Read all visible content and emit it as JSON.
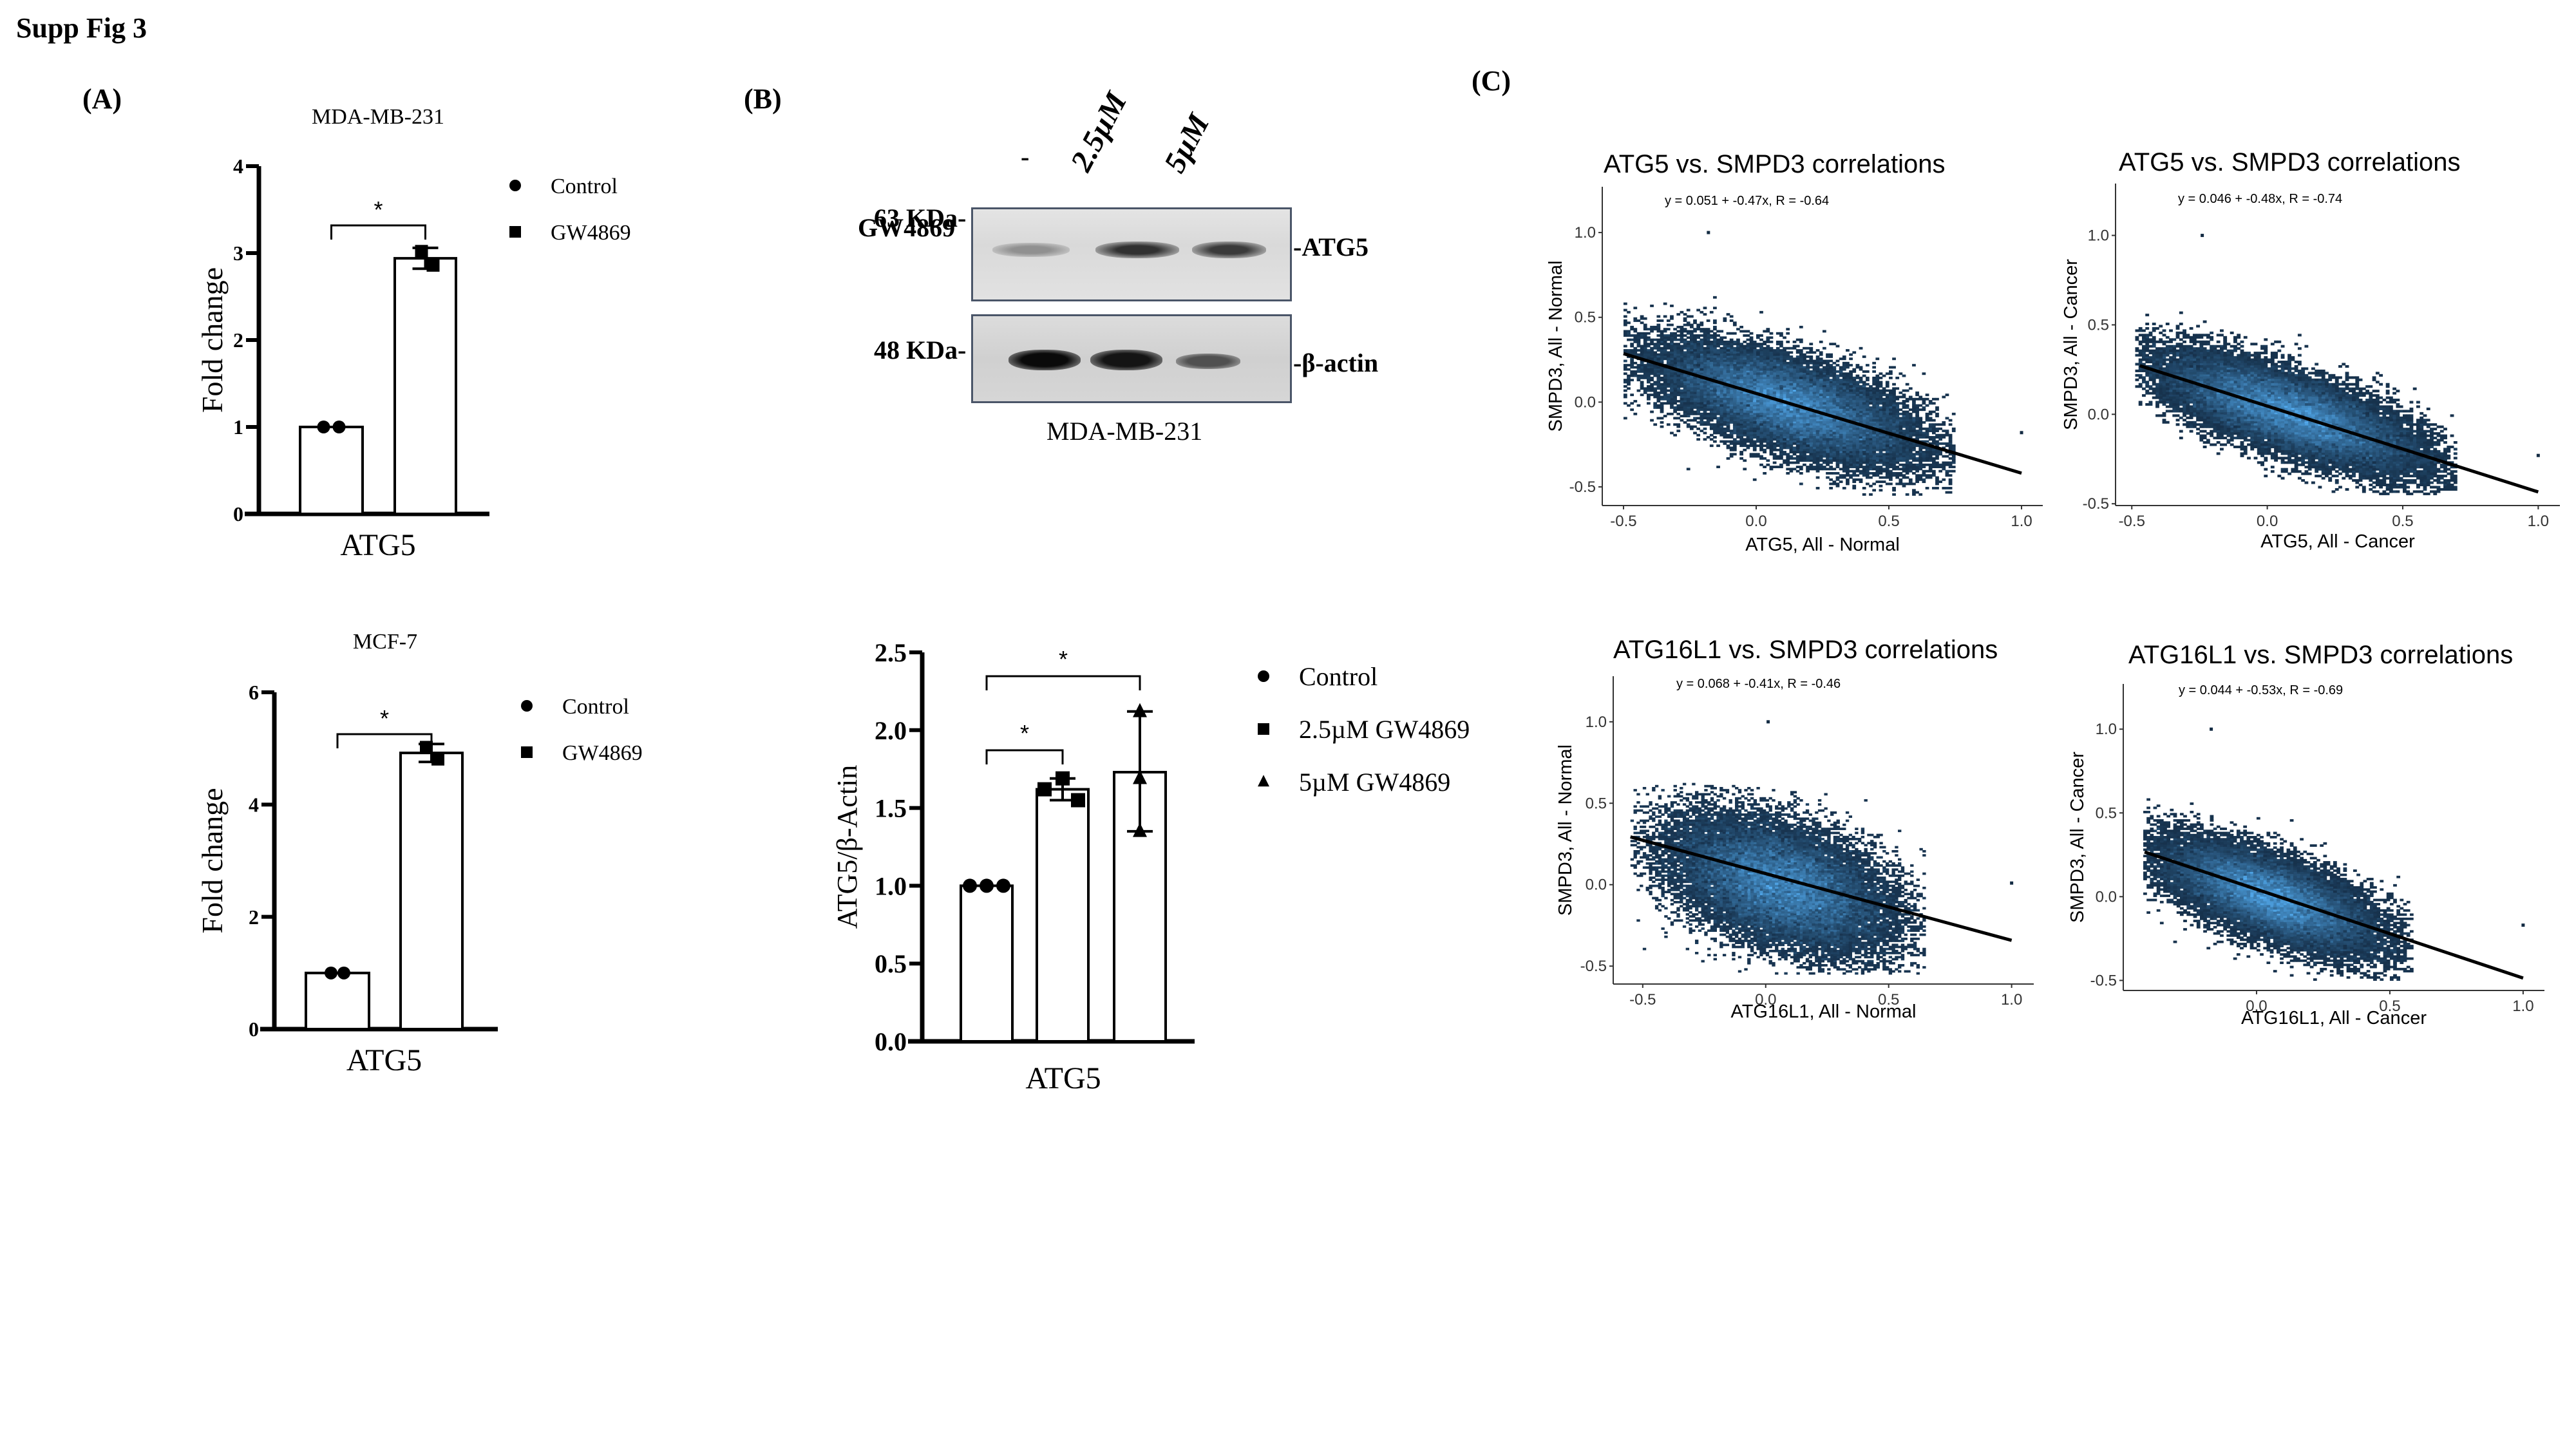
{
  "figure_title": "Supp Fig 3",
  "panel_labels": {
    "a": "(A)",
    "b": "(B)",
    "c": "(C)"
  },
  "western_blot": {
    "treatment_label": "GW4869",
    "lanes": [
      "-",
      "2.5µM",
      "5µM"
    ],
    "markers": [
      {
        "label": "63 KDa-",
        "target": "-ATG5"
      },
      {
        "label": "48 KDa-",
        "target": "-β-actin"
      }
    ],
    "cell_line": "MDA-MB-231",
    "atg5_band_intensity": [
      0.35,
      0.85,
      0.8
    ],
    "actin_band_intensity": [
      0.95,
      0.9,
      0.6
    ]
  },
  "chart_data": [
    {
      "id": "a1",
      "type": "bar",
      "title": "MDA-MB-231",
      "xlabel": "ATG5",
      "ylabel": "Fold change",
      "ylim": [
        0,
        4
      ],
      "yticks": [
        "0",
        "1",
        "2",
        "3",
        "4"
      ],
      "ytick_values": [
        0,
        1,
        2,
        3,
        4
      ],
      "categories": [
        "Control",
        "GW4869"
      ],
      "series": [
        {
          "name": "Control",
          "marker": "circle",
          "value": 1.0,
          "points": [
            1.0,
            1.0
          ],
          "error": [
            1.0,
            1.0
          ]
        },
        {
          "name": "GW4869",
          "marker": "square",
          "value": 2.94,
          "points": [
            3.02,
            2.86
          ],
          "error": [
            2.82,
            3.06
          ]
        }
      ],
      "significance": [
        {
          "from": 0,
          "to": 1,
          "label": "*"
        }
      ],
      "legend": [
        "Control",
        "GW4869"
      ],
      "legend_position": "right"
    },
    {
      "id": "a2",
      "type": "bar",
      "title": "MCF-7",
      "xlabel": "ATG5",
      "ylabel": "Fold change",
      "ylim": [
        0,
        6
      ],
      "yticks": [
        "0",
        "2",
        "4",
        "6"
      ],
      "ytick_values": [
        0,
        2,
        4,
        6
      ],
      "categories": [
        "Control",
        "GW4869"
      ],
      "series": [
        {
          "name": "Control",
          "marker": "circle",
          "value": 1.0,
          "points": [
            1.0,
            1.0
          ],
          "error": [
            1.0,
            1.0
          ]
        },
        {
          "name": "GW4869",
          "marker": "square",
          "value": 4.92,
          "points": [
            5.02,
            4.81
          ],
          "error": [
            4.76,
            5.08
          ]
        }
      ],
      "significance": [
        {
          "from": 0,
          "to": 1,
          "label": "*"
        }
      ],
      "legend": [
        "Control",
        "GW4869"
      ],
      "legend_position": "right"
    },
    {
      "id": "b",
      "type": "bar",
      "title": "",
      "xlabel": "ATG5",
      "ylabel": "ATG5/β-Actin",
      "ylim": [
        0,
        2.5
      ],
      "yticks": [
        "0.0",
        "0.5",
        "1.0",
        "1.5",
        "2.0",
        "2.5"
      ],
      "ytick_values": [
        0,
        0.5,
        1.0,
        1.5,
        2.0,
        2.5
      ],
      "categories": [
        "Control",
        "2.5µM GW4869",
        "5µM GW4869"
      ],
      "series": [
        {
          "name": "Control",
          "marker": "circle",
          "value": 1.0,
          "points": [
            1.0,
            1.0,
            1.0
          ],
          "error": [
            1.0,
            1.0
          ]
        },
        {
          "name": "2.5µM GW4869",
          "marker": "square",
          "value": 1.62,
          "points": [
            1.62,
            1.69,
            1.55
          ],
          "error": [
            1.55,
            1.69
          ]
        },
        {
          "name": "5µM GW4869",
          "marker": "triangle",
          "value": 1.73,
          "points": [
            2.12,
            1.69,
            1.35
          ],
          "error": [
            1.35,
            2.12
          ]
        }
      ],
      "significance": [
        {
          "from": 0,
          "to": 1,
          "label": "*"
        },
        {
          "from": 0,
          "to": 2,
          "label": "*"
        }
      ],
      "legend": [
        "Control",
        "2.5µM GW4869",
        "5µM GW4869"
      ],
      "legend_position": "right"
    },
    {
      "id": "c1",
      "type": "heatmap",
      "subtype": "2d-density-scatter",
      "title": "ATG5 vs. SMPD3 correlations",
      "equation": "y = 0.051 + -0.47x,   R = -0.64",
      "intercept": 0.051,
      "slope": -0.47,
      "r": -0.64,
      "xlabel": "ATG5, All - Normal",
      "ylabel": "SMPD3, All - Normal",
      "xlim": [
        -0.58,
        1.08
      ],
      "ylim": [
        -0.61,
        1.27
      ],
      "xticks": [
        -0.5,
        0.0,
        0.5,
        1.0
      ],
      "xtick_labels": [
        "-0.5",
        "0.0",
        "0.5",
        "1.0"
      ],
      "yticks": [
        -0.5,
        0.0,
        0.5,
        1.0
      ],
      "ytick_labels": [
        "-0.5",
        "0.0",
        "0.5",
        "1.0"
      ],
      "line_x": [
        -0.5,
        1.0
      ],
      "cloud": {
        "cx": 0.12,
        "cy": -0.01,
        "sx": 0.24,
        "sy": 0.17,
        "rho": -0.64,
        "xmin": -0.5,
        "xmax": 0.75
      },
      "outliers": [
        [
          -0.18,
          1.0
        ],
        [
          1.0,
          -0.18
        ]
      ],
      "color_low": "#132B43",
      "color_high": "#56B1F7"
    },
    {
      "id": "c2",
      "type": "heatmap",
      "subtype": "2d-density-scatter",
      "title": "ATG5 vs. SMPD3 correlations",
      "equation": "y = 0.046 + -0.48x,   R = -0.74",
      "intercept": 0.046,
      "slope": -0.48,
      "r": -0.74,
      "xlabel": "ATG5, All - Cancer",
      "ylabel": "SMPD3, All - Cancer",
      "xlim": [
        -0.56,
        1.08
      ],
      "ylim": [
        -0.51,
        1.29
      ],
      "xticks": [
        -0.5,
        0.0,
        0.5,
        1.0
      ],
      "xtick_labels": [
        "-0.5",
        "0.0",
        "0.5",
        "1.0"
      ],
      "yticks": [
        -0.5,
        0.0,
        0.5,
        1.0
      ],
      "ytick_labels": [
        "-0.5",
        "0.0",
        "0.5",
        "1.0"
      ],
      "line_x": [
        -0.47,
        1.0
      ],
      "cloud": {
        "cx": 0.08,
        "cy": 0.01,
        "sx": 0.24,
        "sy": 0.16,
        "rho": -0.74,
        "xmin": -0.48,
        "xmax": 0.7
      },
      "outliers": [
        [
          -0.24,
          1.0
        ],
        [
          1.0,
          -0.23
        ]
      ],
      "color_low": "#132B43",
      "color_high": "#56B1F7"
    },
    {
      "id": "c3",
      "type": "heatmap",
      "subtype": "2d-density-scatter",
      "title": "ATG16L1 vs. SMPD3 correlations",
      "equation": "y = 0.068 + -0.41x,   R = -0.46",
      "intercept": 0.068,
      "slope": -0.41,
      "r": -0.46,
      "xlabel": "ATG16L1, All - Normal",
      "ylabel": "SMPD3, All - Normal",
      "xlim": [
        -0.62,
        1.09
      ],
      "ylim": [
        -0.61,
        1.28
      ],
      "xticks": [
        -0.5,
        0.0,
        0.5,
        1.0
      ],
      "xtick_labels": [
        "-0.5",
        "0.0",
        "0.5",
        "1.0"
      ],
      "yticks": [
        -0.5,
        0.0,
        0.5,
        1.0
      ],
      "ytick_labels": [
        "-0.5",
        "0.0",
        "0.5",
        "1.0"
      ],
      "line_x": [
        -0.55,
        1.0
      ],
      "cloud": {
        "cx": 0.06,
        "cy": 0.0,
        "sx": 0.22,
        "sy": 0.2,
        "rho": -0.46,
        "xmin": -0.55,
        "xmax": 0.65
      },
      "outliers": [
        [
          0.01,
          1.0
        ],
        [
          1.0,
          0.01
        ]
      ],
      "color_low": "#132B43",
      "color_high": "#56B1F7"
    },
    {
      "id": "c4",
      "type": "heatmap",
      "subtype": "2d-density-scatter",
      "title": "ATG16L1 vs. SMPD3 correlations",
      "equation": "y = 0.044 + -0.53x,   R = -0.69",
      "intercept": 0.044,
      "slope": -0.53,
      "r": -0.69,
      "xlabel": "ATG16L1, All - Cancer",
      "ylabel": "SMPD3, All - Cancer",
      "xlim": [
        -0.5,
        1.08
      ],
      "ylim": [
        -0.56,
        1.27
      ],
      "xticks": [
        0.0,
        0.5,
        1.0
      ],
      "xtick_labels": [
        "0.0",
        "0.5",
        "1.0"
      ],
      "yticks": [
        -0.5,
        0.0,
        0.5,
        1.0
      ],
      "ytick_labels": [
        "-0.5",
        "0.0",
        "0.5",
        "1.0"
      ],
      "line_x": [
        -0.42,
        1.0
      ],
      "cloud": {
        "cx": 0.05,
        "cy": 0.0,
        "sx": 0.2,
        "sy": 0.16,
        "rho": -0.69,
        "xmin": -0.42,
        "xmax": 0.58
      },
      "outliers": [
        [
          -0.17,
          1.0
        ],
        [
          1.0,
          -0.17
        ]
      ],
      "color_low": "#132B43",
      "color_high": "#56B1F7"
    }
  ]
}
